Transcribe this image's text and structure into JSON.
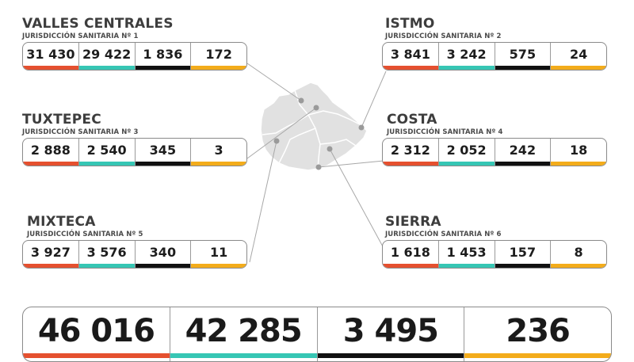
{
  "colors": {
    "orange": "#e5502f",
    "teal": "#36c6b4",
    "black": "#111111",
    "yellow": "#f3ac1b",
    "map_fill": "#e1e1e1"
  },
  "regions": [
    {
      "name": "VALLES CENTRALES",
      "subtitle": "JURISDICCIÓN SANITARIA Nº 1",
      "values": [
        "31 430",
        "29 422",
        "1 836",
        "172"
      ]
    },
    {
      "name": "ISTMO",
      "subtitle": "JURISDICCIÓN SANITARIA Nº 2",
      "values": [
        "3 841",
        "3 242",
        "575",
        "24"
      ]
    },
    {
      "name": "TUXTEPEC",
      "subtitle": "JURISDICCIÓN SANITARIA Nº 3",
      "values": [
        "2 888",
        "2 540",
        "345",
        "3"
      ]
    },
    {
      "name": "COSTA",
      "subtitle": "JURISDICCIÓN SANITARIA Nº 4",
      "values": [
        "2 312",
        "2 052",
        "242",
        "18"
      ]
    },
    {
      "name": "MIXTECA",
      "subtitle": "JURISDICCIÓN SANITARIA Nº 5",
      "values": [
        "3 927",
        "3 576",
        "340",
        "11"
      ]
    },
    {
      "name": "SIERRA",
      "subtitle": "JURISDICCIÓN SANITARIA Nº 6",
      "values": [
        "1 618",
        "1 453",
        "157",
        "8"
      ]
    }
  ],
  "totals": [
    "46 016",
    "42 285",
    "3 495",
    "236"
  ]
}
